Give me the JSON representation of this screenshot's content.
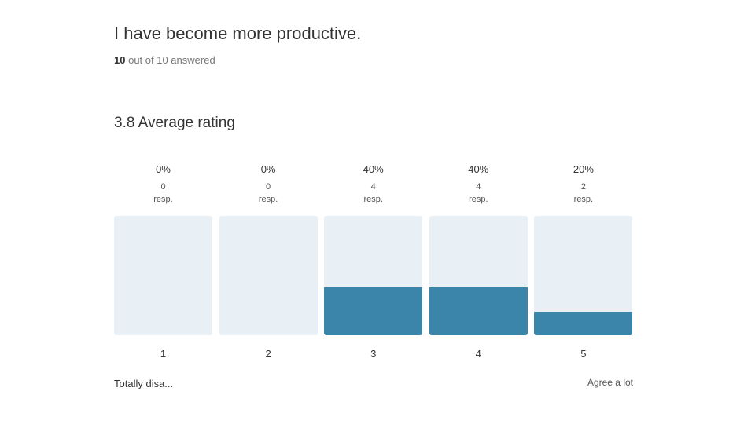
{
  "header": {
    "title": "I have become more productive.",
    "answered_count": 10,
    "answered_label": "out of 10 answered"
  },
  "average": 3.8,
  "average_label": "Average rating",
  "chart_data": {
    "type": "bar",
    "categories": [
      "1",
      "2",
      "3",
      "4",
      "5"
    ],
    "values": [
      0,
      0,
      40,
      40,
      20
    ],
    "value_labels": [
      "0%",
      "0%",
      "40%",
      "40%",
      "20%"
    ],
    "responses": [
      0,
      0,
      4,
      4,
      2
    ],
    "response_unit": "resp.",
    "ylim": [
      0,
      100
    ],
    "color": "#3b84aa",
    "track_color": "#e9f0f5",
    "min_label": "Totally disa...",
    "max_label": "Agree a lot"
  }
}
